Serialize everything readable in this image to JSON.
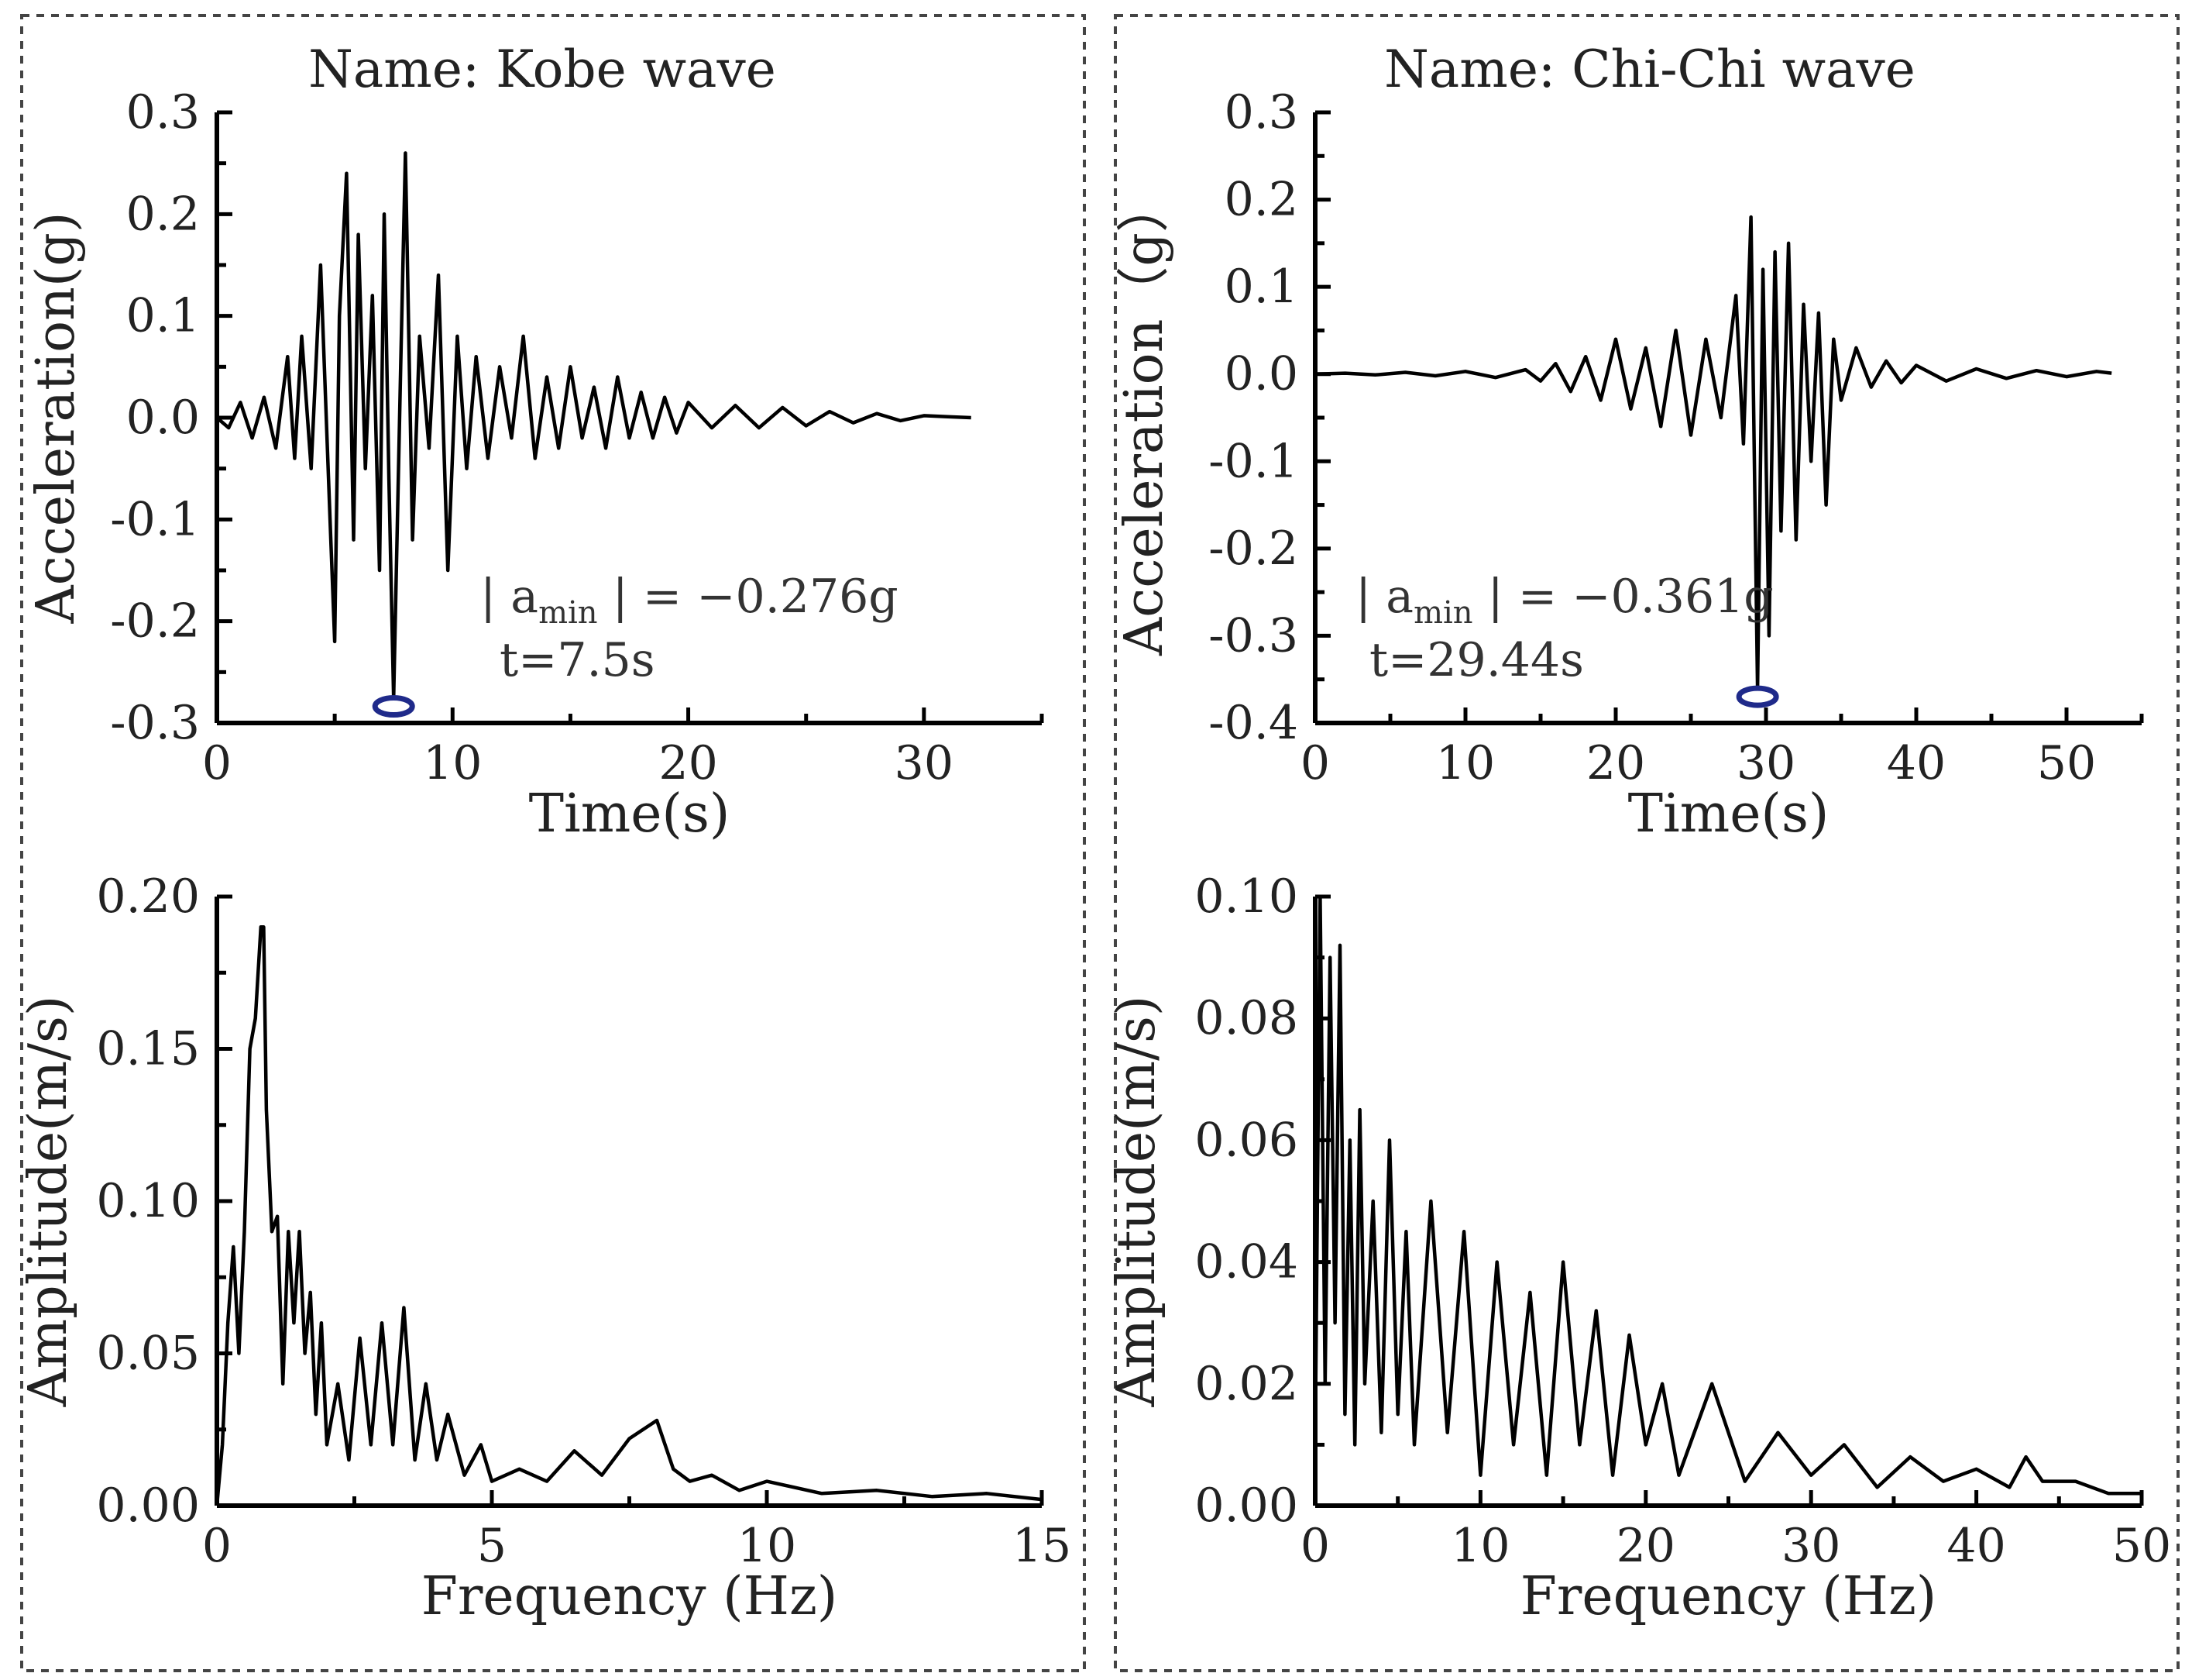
{
  "chart_data": [
    {
      "id": "kobe_time",
      "type": "line",
      "title": "Name: Kobe wave",
      "xlabel": "Time(s)",
      "ylabel": "Acceleration(g)",
      "xlim": [
        0,
        35
      ],
      "ylim": [
        -0.3,
        0.3
      ],
      "xticks": [
        "0",
        "10",
        "20",
        "30"
      ],
      "yticks": [
        "0.3",
        "0.2",
        "0.1",
        "0.0",
        "-0.1",
        "-0.2",
        "-0.3"
      ],
      "annotation": {
        "prefix": "| a",
        "sub": "min",
        "suffix": " | = −0.276g",
        "time": "t=7.5s"
      },
      "peak": {
        "x": 7.5,
        "y": -0.276
      },
      "x": [
        0,
        0.5,
        1,
        1.5,
        2,
        2.5,
        3,
        3.3,
        3.6,
        4,
        4.4,
        4.8,
        5.0,
        5.2,
        5.5,
        5.8,
        6.0,
        6.3,
        6.6,
        6.9,
        7.1,
        7.3,
        7.5,
        7.8,
        8.0,
        8.3,
        8.6,
        9.0,
        9.4,
        9.8,
        10.2,
        10.6,
        11,
        11.5,
        12,
        12.5,
        13,
        13.5,
        14,
        14.5,
        15,
        15.5,
        16,
        16.5,
        17,
        17.5,
        18,
        18.5,
        19,
        19.5,
        20,
        21,
        22,
        23,
        24,
        25,
        26,
        27,
        28,
        29,
        30,
        31,
        32
      ],
      "y": [
        0,
        -0.01,
        0.015,
        -0.02,
        0.02,
        -0.03,
        0.06,
        -0.04,
        0.08,
        -0.05,
        0.15,
        -0.1,
        -0.22,
        0.1,
        0.24,
        -0.12,
        0.18,
        -0.05,
        0.12,
        -0.15,
        0.2,
        -0.06,
        -0.276,
        0.05,
        0.26,
        -0.12,
        0.08,
        -0.03,
        0.14,
        -0.15,
        0.08,
        -0.05,
        0.06,
        -0.04,
        0.05,
        -0.02,
        0.08,
        -0.04,
        0.04,
        -0.03,
        0.05,
        -0.02,
        0.03,
        -0.03,
        0.04,
        -0.02,
        0.025,
        -0.02,
        0.02,
        -0.015,
        0.015,
        -0.01,
        0.012,
        -0.01,
        0.01,
        -0.008,
        0.006,
        -0.005,
        0.004,
        -0.003,
        0.002,
        0.001,
        0
      ]
    },
    {
      "id": "chichi_time",
      "type": "line",
      "title": "Name:  Chi-Chi wave",
      "xlabel": "Time(s)",
      "ylabel": "Acceleration（g）",
      "xlim": [
        0,
        55
      ],
      "ylim": [
        -0.4,
        0.3
      ],
      "xticks": [
        "0",
        "10",
        "20",
        "30",
        "40",
        "50"
      ],
      "yticks": [
        "0.3",
        "0.2",
        "0.1",
        "0.0",
        "-0.1",
        "-0.2",
        "-0.3",
        "-0.4"
      ],
      "annotation": {
        "prefix": "| a",
        "sub": "min",
        "suffix": " | = −0.361g",
        "time": "t=29.44s"
      },
      "peak": {
        "x": 29.44,
        "y": -0.361
      },
      "x": [
        0,
        2,
        4,
        6,
        8,
        10,
        12,
        14,
        15,
        16,
        17,
        18,
        19,
        20,
        21,
        22,
        23,
        24,
        25,
        26,
        27,
        28,
        28.5,
        29,
        29.44,
        29.8,
        30.2,
        30.6,
        31,
        31.5,
        32,
        32.5,
        33,
        33.5,
        34,
        34.5,
        35,
        36,
        37,
        38,
        39,
        40,
        42,
        44,
        46,
        48,
        50,
        52,
        53
      ],
      "y": [
        0,
        0.001,
        -0.001,
        0.002,
        -0.002,
        0.003,
        -0.004,
        0.005,
        -0.008,
        0.012,
        -0.02,
        0.02,
        -0.03,
        0.04,
        -0.04,
        0.03,
        -0.06,
        0.05,
        -0.07,
        0.04,
        -0.05,
        0.09,
        -0.08,
        0.18,
        -0.361,
        0.12,
        -0.3,
        0.14,
        -0.18,
        0.15,
        -0.19,
        0.08,
        -0.1,
        0.07,
        -0.15,
        0.04,
        -0.03,
        0.03,
        -0.015,
        0.015,
        -0.01,
        0.01,
        -0.008,
        0.006,
        -0.005,
        0.004,
        -0.003,
        0.003,
        0.001
      ]
    },
    {
      "id": "kobe_fft",
      "type": "line",
      "xlabel": "Frequency (Hz)",
      "ylabel": "Amplitude(m/s)",
      "xlim": [
        0,
        15
      ],
      "ylim": [
        0,
        0.2
      ],
      "xticks": [
        "0",
        "5",
        "10",
        "15"
      ],
      "yticks": [
        "0.20",
        "0.15",
        "0.10",
        "0.05",
        "0.00"
      ],
      "x": [
        0,
        0.1,
        0.2,
        0.3,
        0.4,
        0.5,
        0.6,
        0.7,
        0.8,
        0.85,
        0.9,
        1.0,
        1.1,
        1.2,
        1.3,
        1.4,
        1.5,
        1.6,
        1.7,
        1.8,
        1.9,
        2.0,
        2.2,
        2.4,
        2.6,
        2.8,
        3.0,
        3.2,
        3.4,
        3.6,
        3.8,
        4.0,
        4.2,
        4.5,
        4.8,
        5.0,
        5.5,
        6.0,
        6.5,
        7.0,
        7.5,
        8.0,
        8.3,
        8.6,
        9.0,
        9.5,
        10,
        11,
        12,
        13,
        14,
        15
      ],
      "y": [
        0,
        0.02,
        0.06,
        0.085,
        0.05,
        0.09,
        0.15,
        0.16,
        0.19,
        0.19,
        0.13,
        0.09,
        0.095,
        0.04,
        0.09,
        0.06,
        0.09,
        0.05,
        0.07,
        0.03,
        0.06,
        0.02,
        0.04,
        0.015,
        0.055,
        0.02,
        0.06,
        0.02,
        0.065,
        0.015,
        0.04,
        0.015,
        0.03,
        0.01,
        0.02,
        0.008,
        0.012,
        0.008,
        0.018,
        0.01,
        0.022,
        0.028,
        0.012,
        0.008,
        0.01,
        0.005,
        0.008,
        0.004,
        0.005,
        0.003,
        0.004,
        0.002
      ]
    },
    {
      "id": "chichi_fft",
      "type": "line",
      "xlabel": "Frequency (Hz)",
      "ylabel": "Amplitude(m/s)",
      "xlim": [
        0,
        50
      ],
      "ylim": [
        0,
        0.1
      ],
      "xticks": [
        "0",
        "10",
        "20",
        "30",
        "40",
        "50"
      ],
      "yticks": [
        "0.10",
        "0.08",
        "0.06",
        "0.04",
        "0.02",
        "0.00"
      ],
      "x": [
        0,
        0.3,
        0.6,
        0.9,
        1.2,
        1.5,
        1.8,
        2.1,
        2.4,
        2.7,
        3,
        3.5,
        4,
        4.5,
        5,
        5.5,
        6,
        7,
        8,
        9,
        10,
        11,
        12,
        13,
        14,
        15,
        16,
        17,
        18,
        19,
        20,
        21,
        22,
        24,
        26,
        28,
        30,
        32,
        34,
        36,
        38,
        40,
        42,
        43,
        44,
        46,
        48,
        50
      ],
      "y": [
        0.01,
        0.1,
        0.02,
        0.09,
        0.03,
        0.092,
        0.015,
        0.06,
        0.01,
        0.065,
        0.02,
        0.05,
        0.012,
        0.06,
        0.015,
        0.045,
        0.01,
        0.05,
        0.012,
        0.045,
        0.005,
        0.04,
        0.01,
        0.035,
        0.005,
        0.04,
        0.01,
        0.032,
        0.005,
        0.028,
        0.01,
        0.02,
        0.005,
        0.02,
        0.004,
        0.012,
        0.005,
        0.01,
        0.003,
        0.008,
        0.004,
        0.006,
        0.003,
        0.008,
        0.004,
        0.004,
        0.002,
        0.002
      ]
    }
  ]
}
